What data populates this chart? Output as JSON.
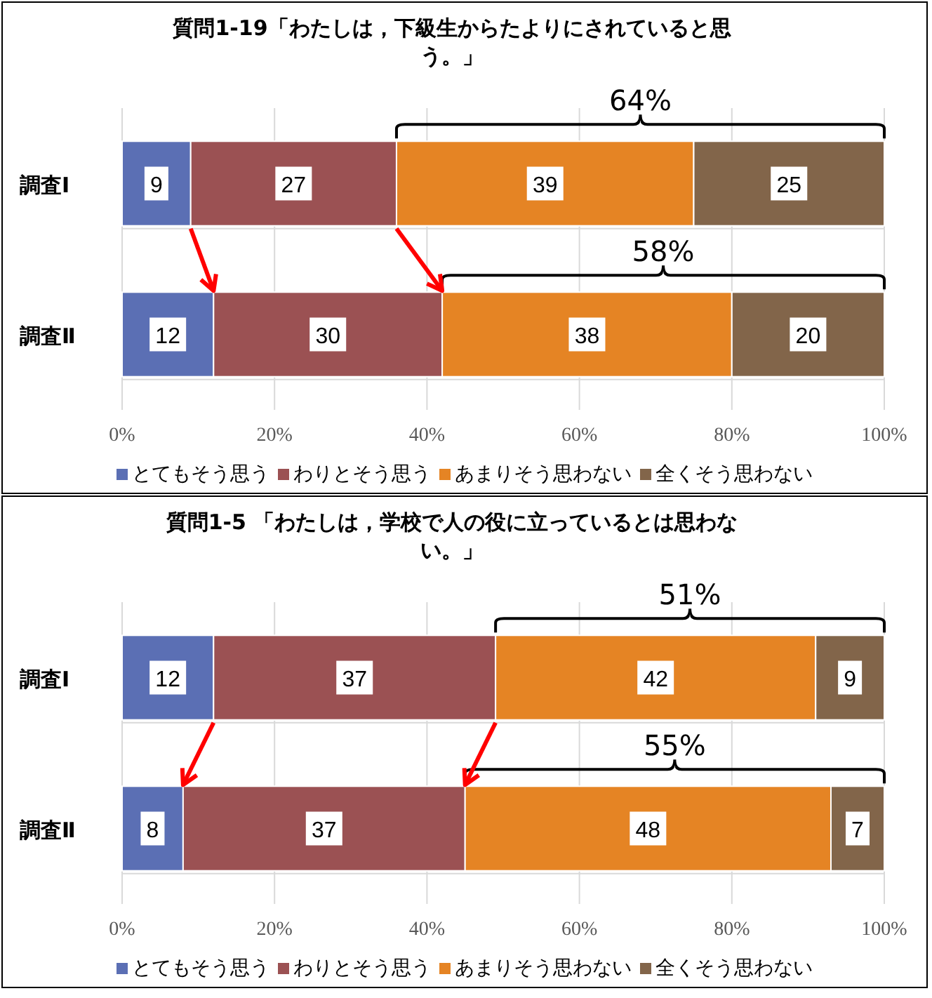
{
  "chart_data": [
    {
      "type": "bar",
      "orientation": "horizontal",
      "stacked": true,
      "title": "質問1-19「わたしは，下級生からたよりにされていると思う。」",
      "categories": [
        "調査Ⅰ",
        "調査Ⅱ"
      ],
      "series": [
        {
          "name": "とてもそう思う",
          "color": "#5b6fb4",
          "values": [
            9,
            12
          ]
        },
        {
          "name": "わりとそう思う",
          "color": "#9b5153",
          "values": [
            27,
            30
          ]
        },
        {
          "name": "あまりそう思わない",
          "color": "#e58424",
          "values": [
            39,
            38
          ]
        },
        {
          "name": "全くそう思わない",
          "color": "#82654a",
          "values": [
            25,
            20
          ]
        }
      ],
      "xlim": [
        0,
        100
      ],
      "xticks": [
        {
          "value": 0,
          "label": "0%"
        },
        {
          "value": 20,
          "label": "20%"
        },
        {
          "value": 40,
          "label": "40%"
        },
        {
          "value": 60,
          "label": "60%"
        },
        {
          "value": 80,
          "label": "80%"
        },
        {
          "value": 100,
          "label": "100%"
        }
      ],
      "grid": "x",
      "legend": "bottom",
      "data_labels": true,
      "annotations": [
        "64%",
        "58%"
      ]
    },
    {
      "type": "bar",
      "orientation": "horizontal",
      "stacked": true,
      "title": "質問1-5 「わたしは，学校で人の役に立っているとは思わない。」",
      "categories": [
        "調査Ⅰ",
        "調査Ⅱ"
      ],
      "series": [
        {
          "name": "とてもそう思う",
          "color": "#5b6fb4",
          "values": [
            12,
            8
          ]
        },
        {
          "name": "わりとそう思う",
          "color": "#9b5153",
          "values": [
            37,
            37
          ]
        },
        {
          "name": "あまりそう思わない",
          "color": "#e58424",
          "values": [
            42,
            48
          ]
        },
        {
          "name": "全くそう思わない",
          "color": "#82654a",
          "values": [
            9,
            7
          ]
        }
      ],
      "xlim": [
        0,
        100
      ],
      "xticks": [
        {
          "value": 0,
          "label": "0%"
        },
        {
          "value": 20,
          "label": "20%"
        },
        {
          "value": 40,
          "label": "40%"
        },
        {
          "value": 60,
          "label": "60%"
        },
        {
          "value": 80,
          "label": "80%"
        },
        {
          "value": 100,
          "label": "100%"
        }
      ],
      "grid": "x",
      "legend": "bottom",
      "data_labels": true,
      "annotations": [
        "51%",
        "55%"
      ]
    }
  ]
}
